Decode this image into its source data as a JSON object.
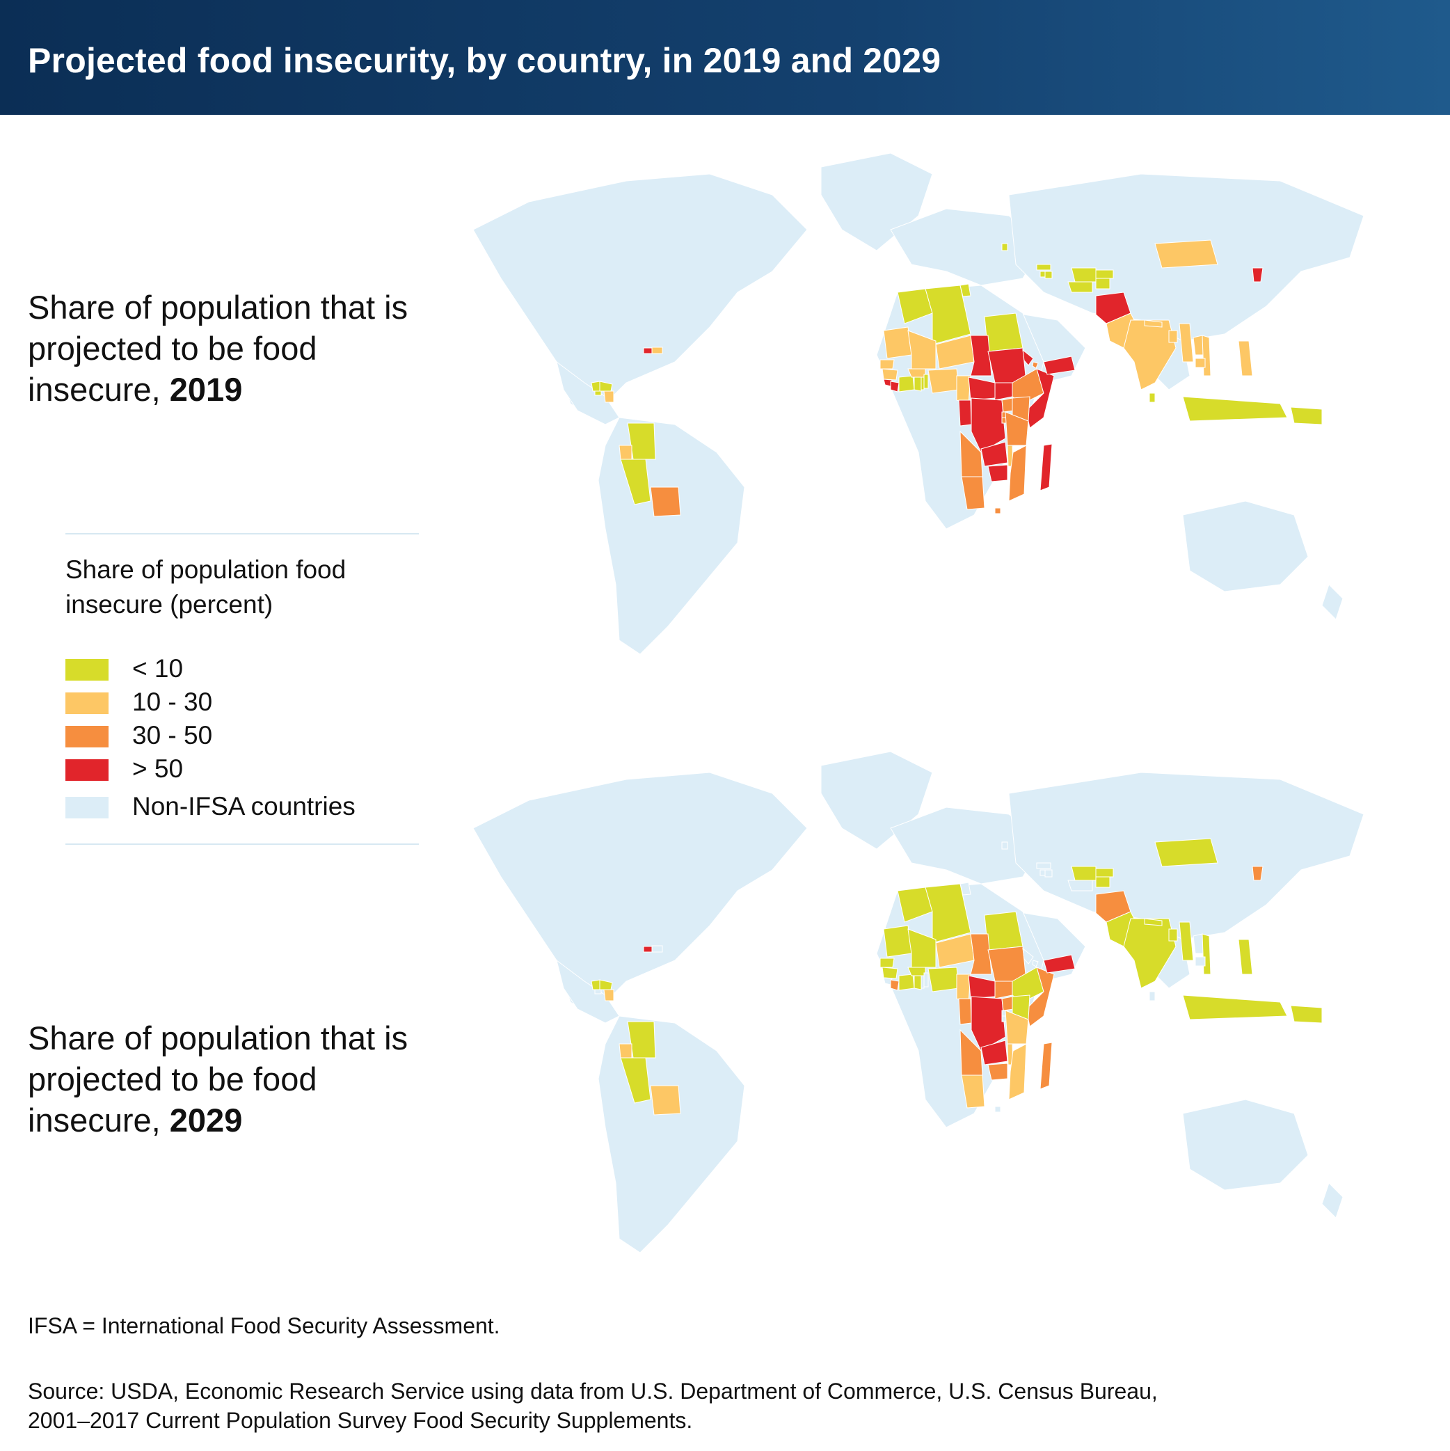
{
  "title": "Projected food insecurity, by country, in 2019 and 2029",
  "panels": [
    {
      "label_prefix": "Share of population that is projected to be food insecure, ",
      "year": "2019"
    },
    {
      "label_prefix": "Share of population that is projected to be food insecure, ",
      "year": "2029"
    }
  ],
  "legend": {
    "title": "Share of population food insecure (percent)",
    "items": [
      {
        "key": "lt10",
        "label": "< 10",
        "color": "#d7dc2a"
      },
      {
        "key": "b10_30",
        "label": "10 - 30",
        "color": "#fdc765"
      },
      {
        "key": "b30_50",
        "label": "30 - 50",
        "color": "#f68e3f"
      },
      {
        "key": "gt50",
        "label": "> 50",
        "color": "#e1252b"
      },
      {
        "key": "nonifsa",
        "label": "Non-IFSA countries",
        "color": "#dcedf7"
      }
    ]
  },
  "footnote": "IFSA = International Food Security Assessment.",
  "source_line1": "Source: USDA, Economic Research Service using data from U.S. Department of Commerce, U.S. Census Bureau,",
  "source_line2": "2001–2017 Current Population Survey Food Security Supplements.",
  "map_data": {
    "2019": {
      "Afghanistan": ">50",
      "North Korea": ">50",
      "Yemen": ">50",
      "Haiti": ">50",
      "Sudan": ">50",
      "South Sudan": ">50",
      "Central African Republic": ">50",
      "Chad": ">50",
      "DR Congo": ">50",
      "Congo": ">50",
      "Zambia": ">50",
      "Zimbabwe": ">50",
      "Madagascar": ">50",
      "Somalia": ">50",
      "Liberia": ">50",
      "Sierra Leone": ">50",
      "Eritrea": ">50",
      "Bolivia": "30-50",
      "Ethiopia": "30-50",
      "Kenya": "30-50",
      "Uganda": "30-50",
      "Tanzania": "30-50",
      "Angola": "30-50",
      "Namibia": "30-50",
      "Mozambique": "30-50",
      "Lesotho": "30-50",
      "Rwanda": "30-50",
      "Burundi": "30-50",
      "Djibouti": "30-50",
      "Mongolia": "10-30",
      "India": "10-30",
      "Pakistan": "10-30",
      "Bangladesh": "10-30",
      "Nepal": "10-30",
      "Myanmar": "10-30",
      "Cambodia": "10-30",
      "Laos": "10-30",
      "Vietnam": "10-30",
      "Philippines": "10-30",
      "Mauritania": "10-30",
      "Mali": "10-30",
      "Niger": "10-30",
      "Nigeria": "10-30",
      "Burkina Faso": "10-30",
      "Senegal": "10-30",
      "Guinea": "10-30",
      "Cameroon": "10-30",
      "Malawi": "10-30",
      "Ecuador": "10-30",
      "Nicaragua": "10-30",
      "Dominican Republic": "10-30",
      "Morocco": "<10",
      "Algeria": "<10",
      "Tunisia": "<10",
      "Egypt": "<10",
      "Ghana": "<10",
      "Ivory Coast": "<10",
      "Togo": "<10",
      "Benin": "<10",
      "Colombia": "<10",
      "Peru": "<10",
      "Guatemala": "<10",
      "Honduras": "<10",
      "El Salvador": "<10",
      "Indonesia": "<10",
      "Papua New Guinea": "<10",
      "Uzbekistan": "<10",
      "Turkmenistan": "<10",
      "Kyrgyzstan": "<10",
      "Tajikistan": "<10",
      "Armenia": "<10",
      "Azerbaijan": "<10",
      "Georgia": "<10",
      "Moldova": "<10",
      "Sri Lanka": "<10"
    },
    "2029": {
      "Yemen": ">50",
      "DR Congo": ">50",
      "Zambia": ">50",
      "Central African Republic": ">50",
      "Haiti": ">50",
      "Afghanistan": "30-50",
      "North Korea": "30-50",
      "Sudan": "30-50",
      "South Sudan": "30-50",
      "Chad": "30-50",
      "Somalia": "30-50",
      "Angola": "30-50",
      "Madagascar": "30-50",
      "Congo": "30-50",
      "Uganda": "30-50",
      "Zimbabwe": "30-50",
      "Liberia": "30-50",
      "Bolivia": "10-30",
      "Namibia": "10-30",
      "Tanzania": "10-30",
      "Mozambique": "10-30",
      "Niger": "10-30",
      "Ecuador": "10-30",
      "Cameroon": "10-30",
      "Malawi": "10-30",
      "Nicaragua": "10-30",
      "Mongolia": "<10",
      "India": "<10",
      "Pakistan": "<10",
      "Bangladesh": "<10",
      "Nepal": "<10",
      "Myanmar": "<10",
      "Vietnam": "<10",
      "Philippines": "<10",
      "Indonesia": "<10",
      "Papua New Guinea": "<10",
      "Morocco": "<10",
      "Algeria": "<10",
      "Mauritania": "<10",
      "Mali": "<10",
      "Nigeria": "<10",
      "Senegal": "<10",
      "Guinea": "<10",
      "Ghana": "<10",
      "Ivory Coast": "<10",
      "Burkina Faso": "<10",
      "Egypt": "<10",
      "Ethiopia": "<10",
      "Kenya": "<10",
      "Colombia": "<10",
      "Peru": "<10",
      "Guatemala": "<10",
      "Honduras": "<10",
      "Uzbekistan": "<10",
      "Kyrgyzstan": "<10",
      "Tajikistan": "<10"
    }
  }
}
